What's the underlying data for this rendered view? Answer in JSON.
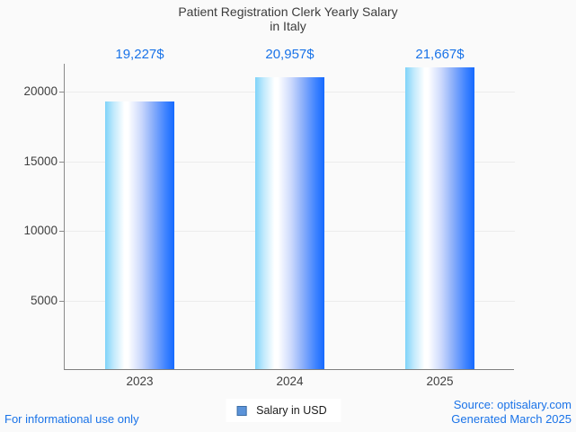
{
  "header": {
    "title_line1": "Patient Registration Clerk Yearly Salary",
    "title_line2": "in Italy"
  },
  "chart_data": {
    "type": "bar",
    "title": "Patient Registration Clerk Yearly Salary in Italy",
    "categories": [
      "2023",
      "2024",
      "2025"
    ],
    "values": [
      19227,
      20957,
      21667
    ],
    "value_labels": [
      "19,227$",
      "20,957$",
      "21,667$"
    ],
    "series_name": "Salary in USD",
    "xlabel": "",
    "ylabel": "",
    "ylim": [
      0,
      22000
    ],
    "yticks": [
      5000,
      10000,
      15000,
      20000
    ],
    "ytick_labels": [
      "5000",
      "10000",
      "15000",
      "20000"
    ],
    "grid": true,
    "legend_position": "bottom",
    "colors": {
      "bar_gradient_start": "#7ed3f9",
      "bar_gradient_mid": "#ffffff",
      "bar_gradient_end": "#156aff",
      "value_label": "#1a73e8",
      "axis": "#8a8a8a",
      "gridline": "#ececec",
      "title_text": "#3c3c3c"
    }
  },
  "legend": {
    "label": "Salary in USD",
    "swatch_color": "#5b93d9"
  },
  "footer": {
    "left_note": "For informational use only",
    "source_line1": "Source: optisalary.com",
    "source_line2": "Generated March 2025"
  }
}
